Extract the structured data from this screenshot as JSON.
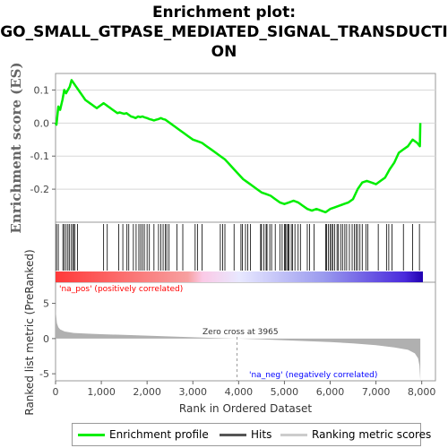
{
  "title_lines": [
    "Enrichment plot:",
    "GO_SMALL_GTPASE_MEDIATED_SIGNAL_TRANSDUCTI",
    "ON"
  ],
  "colors": {
    "es_line": "#00ee00",
    "hits": "#000000",
    "metric_fill": "#b0b0b0",
    "pos_label": "#ff0000",
    "neg_label": "#0000ff"
  },
  "chart_data": [
    {
      "type": "line",
      "ylabel": "Enrichment score (ES)",
      "xlim": [
        0,
        8300
      ],
      "ylim": [
        -0.3,
        0.15
      ],
      "yticks": [
        0.1,
        0.0,
        -0.1,
        -0.2
      ],
      "ytick_labels": [
        "0.1",
        "0.0",
        "-0.1",
        "-0.2"
      ],
      "series": [
        {
          "name": "Enrichment profile",
          "x": [
            0,
            20,
            60,
            100,
            150,
            190,
            230,
            270,
            310,
            350,
            400,
            450,
            500,
            550,
            600,
            650,
            700,
            750,
            800,
            850,
            900,
            950,
            1000,
            1050,
            1100,
            1150,
            1200,
            1250,
            1300,
            1350,
            1400,
            1450,
            1500,
            1550,
            1600,
            1650,
            1700,
            1750,
            1800,
            1850,
            1900,
            1950,
            2000,
            2050,
            2100,
            2150,
            2200,
            2250,
            2300,
            2350,
            2400,
            2450,
            2500,
            2600,
            2700,
            2800,
            2900,
            3000,
            3100,
            3200,
            3300,
            3400,
            3500,
            3600,
            3700,
            3800,
            3900,
            4000,
            4100,
            4200,
            4300,
            4400,
            4500,
            4600,
            4700,
            4800,
            4900,
            5000,
            5100,
            5200,
            5300,
            5400,
            5500,
            5600,
            5700,
            5800,
            5900,
            6000,
            6100,
            6200,
            6300,
            6400,
            6500,
            6600,
            6700,
            6800,
            6900,
            7000,
            7100,
            7200,
            7300,
            7400,
            7500,
            7600,
            7700,
            7800,
            7900,
            7960,
            7970
          ],
          "y": [
            0.0,
            -0.005,
            0.05,
            0.04,
            0.07,
            0.1,
            0.09,
            0.1,
            0.11,
            0.13,
            0.12,
            0.11,
            0.1,
            0.09,
            0.08,
            0.07,
            0.065,
            0.06,
            0.055,
            0.05,
            0.045,
            0.05,
            0.055,
            0.06,
            0.055,
            0.05,
            0.045,
            0.04,
            0.035,
            0.03,
            0.032,
            0.03,
            0.028,
            0.03,
            0.025,
            0.02,
            0.018,
            0.015,
            0.02,
            0.018,
            0.02,
            0.017,
            0.015,
            0.012,
            0.01,
            0.008,
            0.01,
            0.012,
            0.015,
            0.012,
            0.01,
            0.005,
            0.0,
            -0.01,
            -0.02,
            -0.03,
            -0.04,
            -0.05,
            -0.055,
            -0.06,
            -0.07,
            -0.08,
            -0.09,
            -0.1,
            -0.11,
            -0.125,
            -0.14,
            -0.155,
            -0.17,
            -0.18,
            -0.19,
            -0.2,
            -0.21,
            -0.215,
            -0.22,
            -0.23,
            -0.24,
            -0.245,
            -0.24,
            -0.235,
            -0.24,
            -0.25,
            -0.26,
            -0.265,
            -0.26,
            -0.265,
            -0.27,
            -0.26,
            -0.255,
            -0.25,
            -0.245,
            -0.24,
            -0.23,
            -0.2,
            -0.18,
            -0.175,
            -0.18,
            -0.185,
            -0.175,
            -0.165,
            -0.14,
            -0.12,
            -0.09,
            -0.08,
            -0.07,
            -0.05,
            -0.06,
            -0.07,
            0.0
          ]
        }
      ]
    },
    {
      "type": "hits",
      "xlim": [
        0,
        8300
      ],
      "hits": [
        20,
        60,
        160,
        190,
        230,
        270,
        300,
        340,
        380,
        390,
        420,
        480,
        1050,
        1130,
        1380,
        1470,
        1560,
        1600,
        1700,
        1760,
        1820,
        1860,
        1900,
        1940,
        2000,
        2050,
        2150,
        2250,
        2300,
        2350,
        2400,
        2430,
        2480,
        2650,
        2780,
        3050,
        3100,
        3200,
        3600,
        3650,
        3700,
        3900,
        4050,
        4080,
        4150,
        4200,
        4260,
        4480,
        4500,
        4550,
        4600,
        4620,
        4680,
        4720,
        4800,
        4900,
        4950,
        5000,
        5020,
        5050,
        5080,
        5100,
        5150,
        5180,
        5230,
        5300,
        5350,
        5500,
        5550,
        5650,
        5900,
        5920,
        5960,
        6000,
        6030,
        6060,
        6100,
        6150,
        6180,
        6230,
        6270,
        6320,
        6360,
        6420,
        6480,
        6530,
        6570,
        6600,
        6650,
        6700,
        6780,
        6820,
        7050,
        7230,
        7280,
        7350,
        7600,
        7800,
        7950
      ]
    },
    {
      "type": "area",
      "xlabel": "Rank in Ordered Dataset",
      "ylabel": "Ranked list metric (PreRanked)",
      "xlim": [
        0,
        8300
      ],
      "ylim": [
        -6,
        8
      ],
      "yticks": [
        5,
        0,
        -5
      ],
      "ytick_labels": [
        "5",
        "0",
        "-5"
      ],
      "xticks": [
        0,
        1000,
        2000,
        3000,
        4000,
        5000,
        6000,
        7000,
        8000
      ],
      "xtick_labels": [
        "0",
        "1,000",
        "2,000",
        "3,000",
        "4,000",
        "5,000",
        "6,000",
        "7,000",
        "8,000"
      ],
      "x": [
        0,
        10,
        30,
        60,
        100,
        200,
        400,
        700,
        1000,
        1500,
        2000,
        2500,
        3000,
        3500,
        3965,
        4500,
        5000,
        5500,
        6000,
        6500,
        7000,
        7400,
        7700,
        7850,
        7920,
        7950,
        7970
      ],
      "values": [
        4.8,
        3.5,
        2.2,
        1.6,
        1.3,
        1.0,
        0.8,
        0.7,
        0.62,
        0.52,
        0.42,
        0.3,
        0.18,
        0.08,
        0.0,
        -0.12,
        -0.25,
        -0.38,
        -0.5,
        -0.68,
        -0.95,
        -1.25,
        -1.6,
        -2.1,
        -2.8,
        -3.8,
        -6.0
      ],
      "annotations": {
        "pos": "'na_pos' (positively correlated)",
        "neg": "'na_neg' (negatively correlated)",
        "zero": "Zero cross at 3965"
      }
    }
  ],
  "legend": [
    {
      "label": "Enrichment profile"
    },
    {
      "label": "Hits"
    },
    {
      "label": "Ranking metric scores"
    }
  ]
}
